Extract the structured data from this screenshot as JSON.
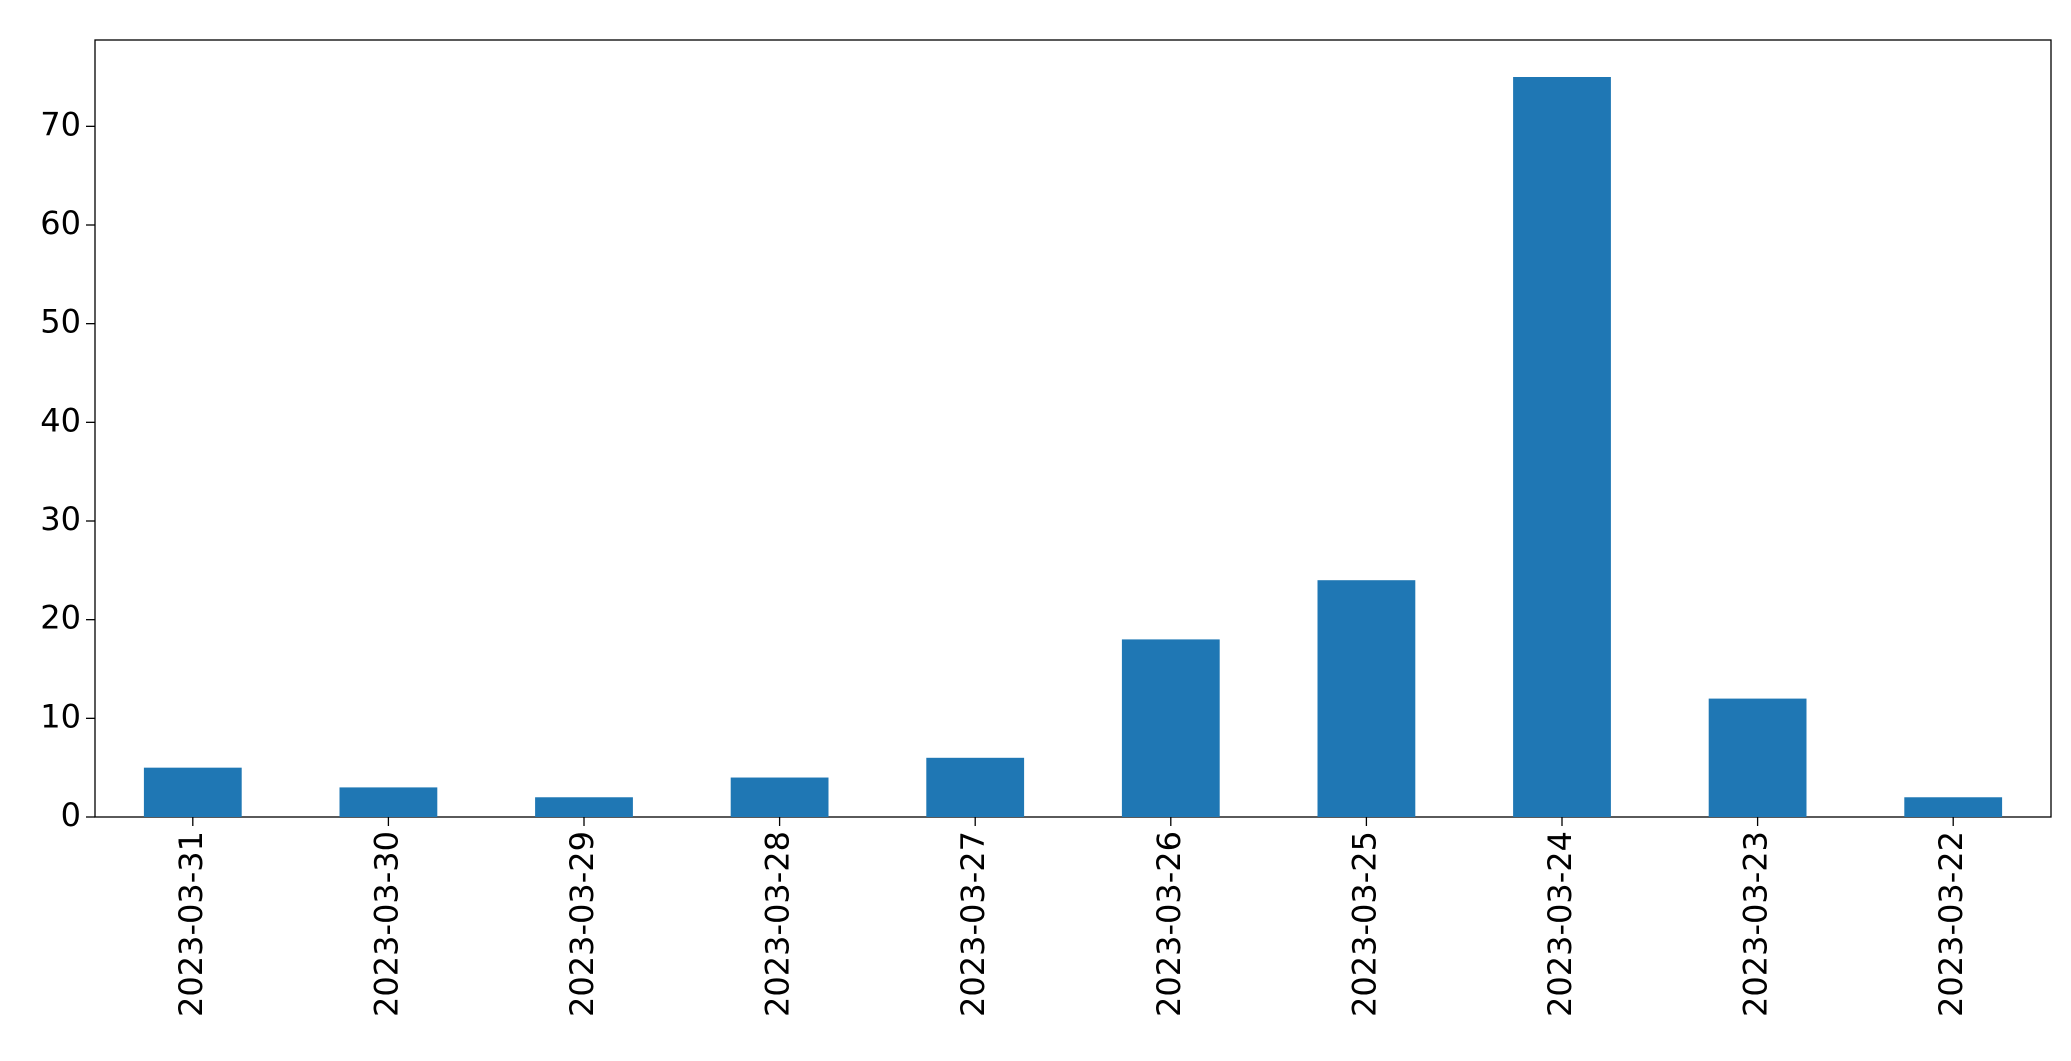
{
  "chart_data": {
    "type": "bar",
    "categories": [
      "2023-03-31",
      "2023-03-30",
      "2023-03-29",
      "2023-03-28",
      "2023-03-27",
      "2023-03-26",
      "2023-03-25",
      "2023-03-24",
      "2023-03-23",
      "2023-03-22"
    ],
    "values": [
      5,
      3,
      2,
      4,
      6,
      18,
      24,
      75,
      12,
      2
    ],
    "color": "#1f77b4",
    "ylim": [
      0,
      78.75
    ],
    "yticks": [
      0,
      10,
      20,
      30,
      40,
      50,
      60,
      70
    ],
    "grid": false
  }
}
